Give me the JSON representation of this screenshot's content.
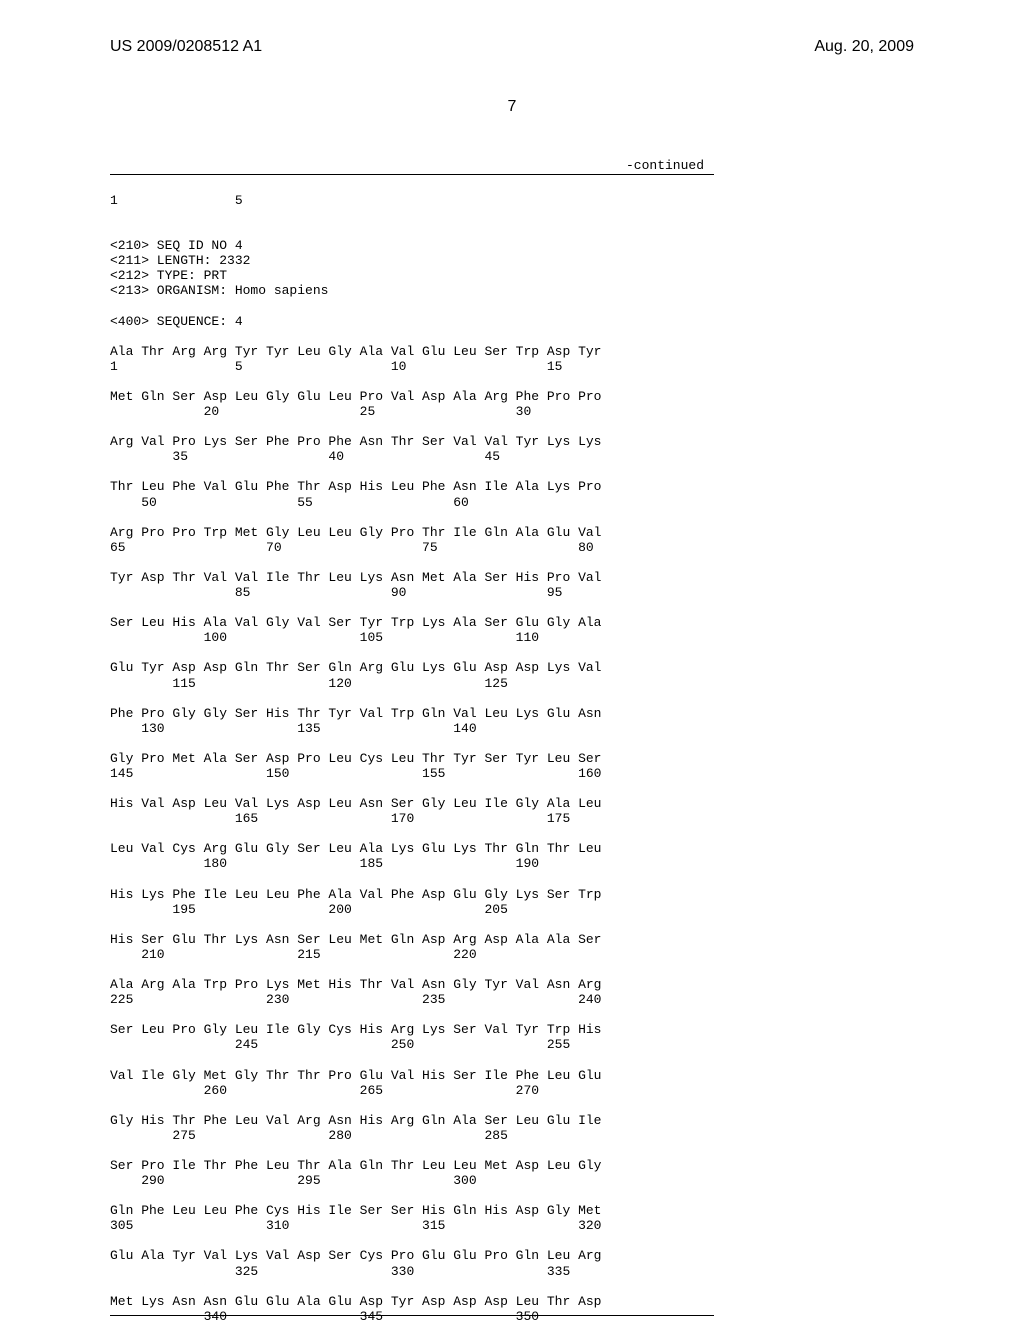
{
  "header": {
    "pub_number": "US 2009/0208512 A1",
    "date": "Aug. 20, 2009",
    "page_number": "7",
    "continued_label": "-continued"
  },
  "sequence_text": "1               5\n\n\n<210> SEQ ID NO 4\n<211> LENGTH: 2332\n<212> TYPE: PRT\n<213> ORGANISM: Homo sapiens\n\n<400> SEQUENCE: 4\n\nAla Thr Arg Arg Tyr Tyr Leu Gly Ala Val Glu Leu Ser Trp Asp Tyr\n1               5                   10                  15\n\nMet Gln Ser Asp Leu Gly Glu Leu Pro Val Asp Ala Arg Phe Pro Pro\n            20                  25                  30\n\nArg Val Pro Lys Ser Phe Pro Phe Asn Thr Ser Val Val Tyr Lys Lys\n        35                  40                  45\n\nThr Leu Phe Val Glu Phe Thr Asp His Leu Phe Asn Ile Ala Lys Pro\n    50                  55                  60\n\nArg Pro Pro Trp Met Gly Leu Leu Gly Pro Thr Ile Gln Ala Glu Val\n65                  70                  75                  80\n\nTyr Asp Thr Val Val Ile Thr Leu Lys Asn Met Ala Ser His Pro Val\n                85                  90                  95\n\nSer Leu His Ala Val Gly Val Ser Tyr Trp Lys Ala Ser Glu Gly Ala\n            100                 105                 110\n\nGlu Tyr Asp Asp Gln Thr Ser Gln Arg Glu Lys Glu Asp Asp Lys Val\n        115                 120                 125\n\nPhe Pro Gly Gly Ser His Thr Tyr Val Trp Gln Val Leu Lys Glu Asn\n    130                 135                 140\n\nGly Pro Met Ala Ser Asp Pro Leu Cys Leu Thr Tyr Ser Tyr Leu Ser\n145                 150                 155                 160\n\nHis Val Asp Leu Val Lys Asp Leu Asn Ser Gly Leu Ile Gly Ala Leu\n                165                 170                 175\n\nLeu Val Cys Arg Glu Gly Ser Leu Ala Lys Glu Lys Thr Gln Thr Leu\n            180                 185                 190\n\nHis Lys Phe Ile Leu Leu Phe Ala Val Phe Asp Glu Gly Lys Ser Trp\n        195                 200                 205\n\nHis Ser Glu Thr Lys Asn Ser Leu Met Gln Asp Arg Asp Ala Ala Ser\n    210                 215                 220\n\nAla Arg Ala Trp Pro Lys Met His Thr Val Asn Gly Tyr Val Asn Arg\n225                 230                 235                 240\n\nSer Leu Pro Gly Leu Ile Gly Cys His Arg Lys Ser Val Tyr Trp His\n                245                 250                 255\n\nVal Ile Gly Met Gly Thr Thr Pro Glu Val His Ser Ile Phe Leu Glu\n            260                 265                 270\n\nGly His Thr Phe Leu Val Arg Asn His Arg Gln Ala Ser Leu Glu Ile\n        275                 280                 285\n\nSer Pro Ile Thr Phe Leu Thr Ala Gln Thr Leu Leu Met Asp Leu Gly\n    290                 295                 300\n\nGln Phe Leu Leu Phe Cys His Ile Ser Ser His Gln His Asp Gly Met\n305                 310                 315                 320\n\nGlu Ala Tyr Val Lys Val Asp Ser Cys Pro Glu Glu Pro Gln Leu Arg\n                325                 330                 335\n\nMet Lys Asn Asn Glu Glu Ala Glu Asp Tyr Asp Asp Asp Leu Thr Asp\n            340                 345                 350"
}
